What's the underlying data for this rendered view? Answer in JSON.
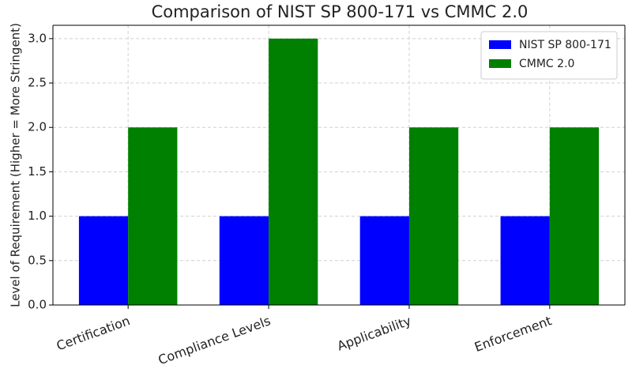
{
  "chart_data": {
    "type": "bar",
    "title": "Comparison of NIST SP 800-171 vs CMMC 2.0",
    "y_label": "Level of Requirement (Higher = More Stringent)",
    "categories": [
      "Certification",
      "Compliance Levels",
      "Applicability",
      "Enforcement"
    ],
    "series": [
      {
        "name": "NIST SP 800-171",
        "color": "#0000ff",
        "values": [
          1,
          1,
          1,
          1
        ]
      },
      {
        "name": "CMMC 2.0",
        "color": "#008000",
        "values": [
          2,
          3,
          2,
          2
        ]
      }
    ],
    "ylim": [
      0,
      3.15
    ],
    "yticks": [
      {
        "value": 0,
        "label": "0.0"
      },
      0.5,
      {
        "value": 1,
        "label": "1.0"
      },
      1.5,
      {
        "value": 2,
        "label": "2.0"
      },
      2.5,
      {
        "value": 3,
        "label": "3.0"
      }
    ],
    "grid": true,
    "legend": "upper-right"
  }
}
